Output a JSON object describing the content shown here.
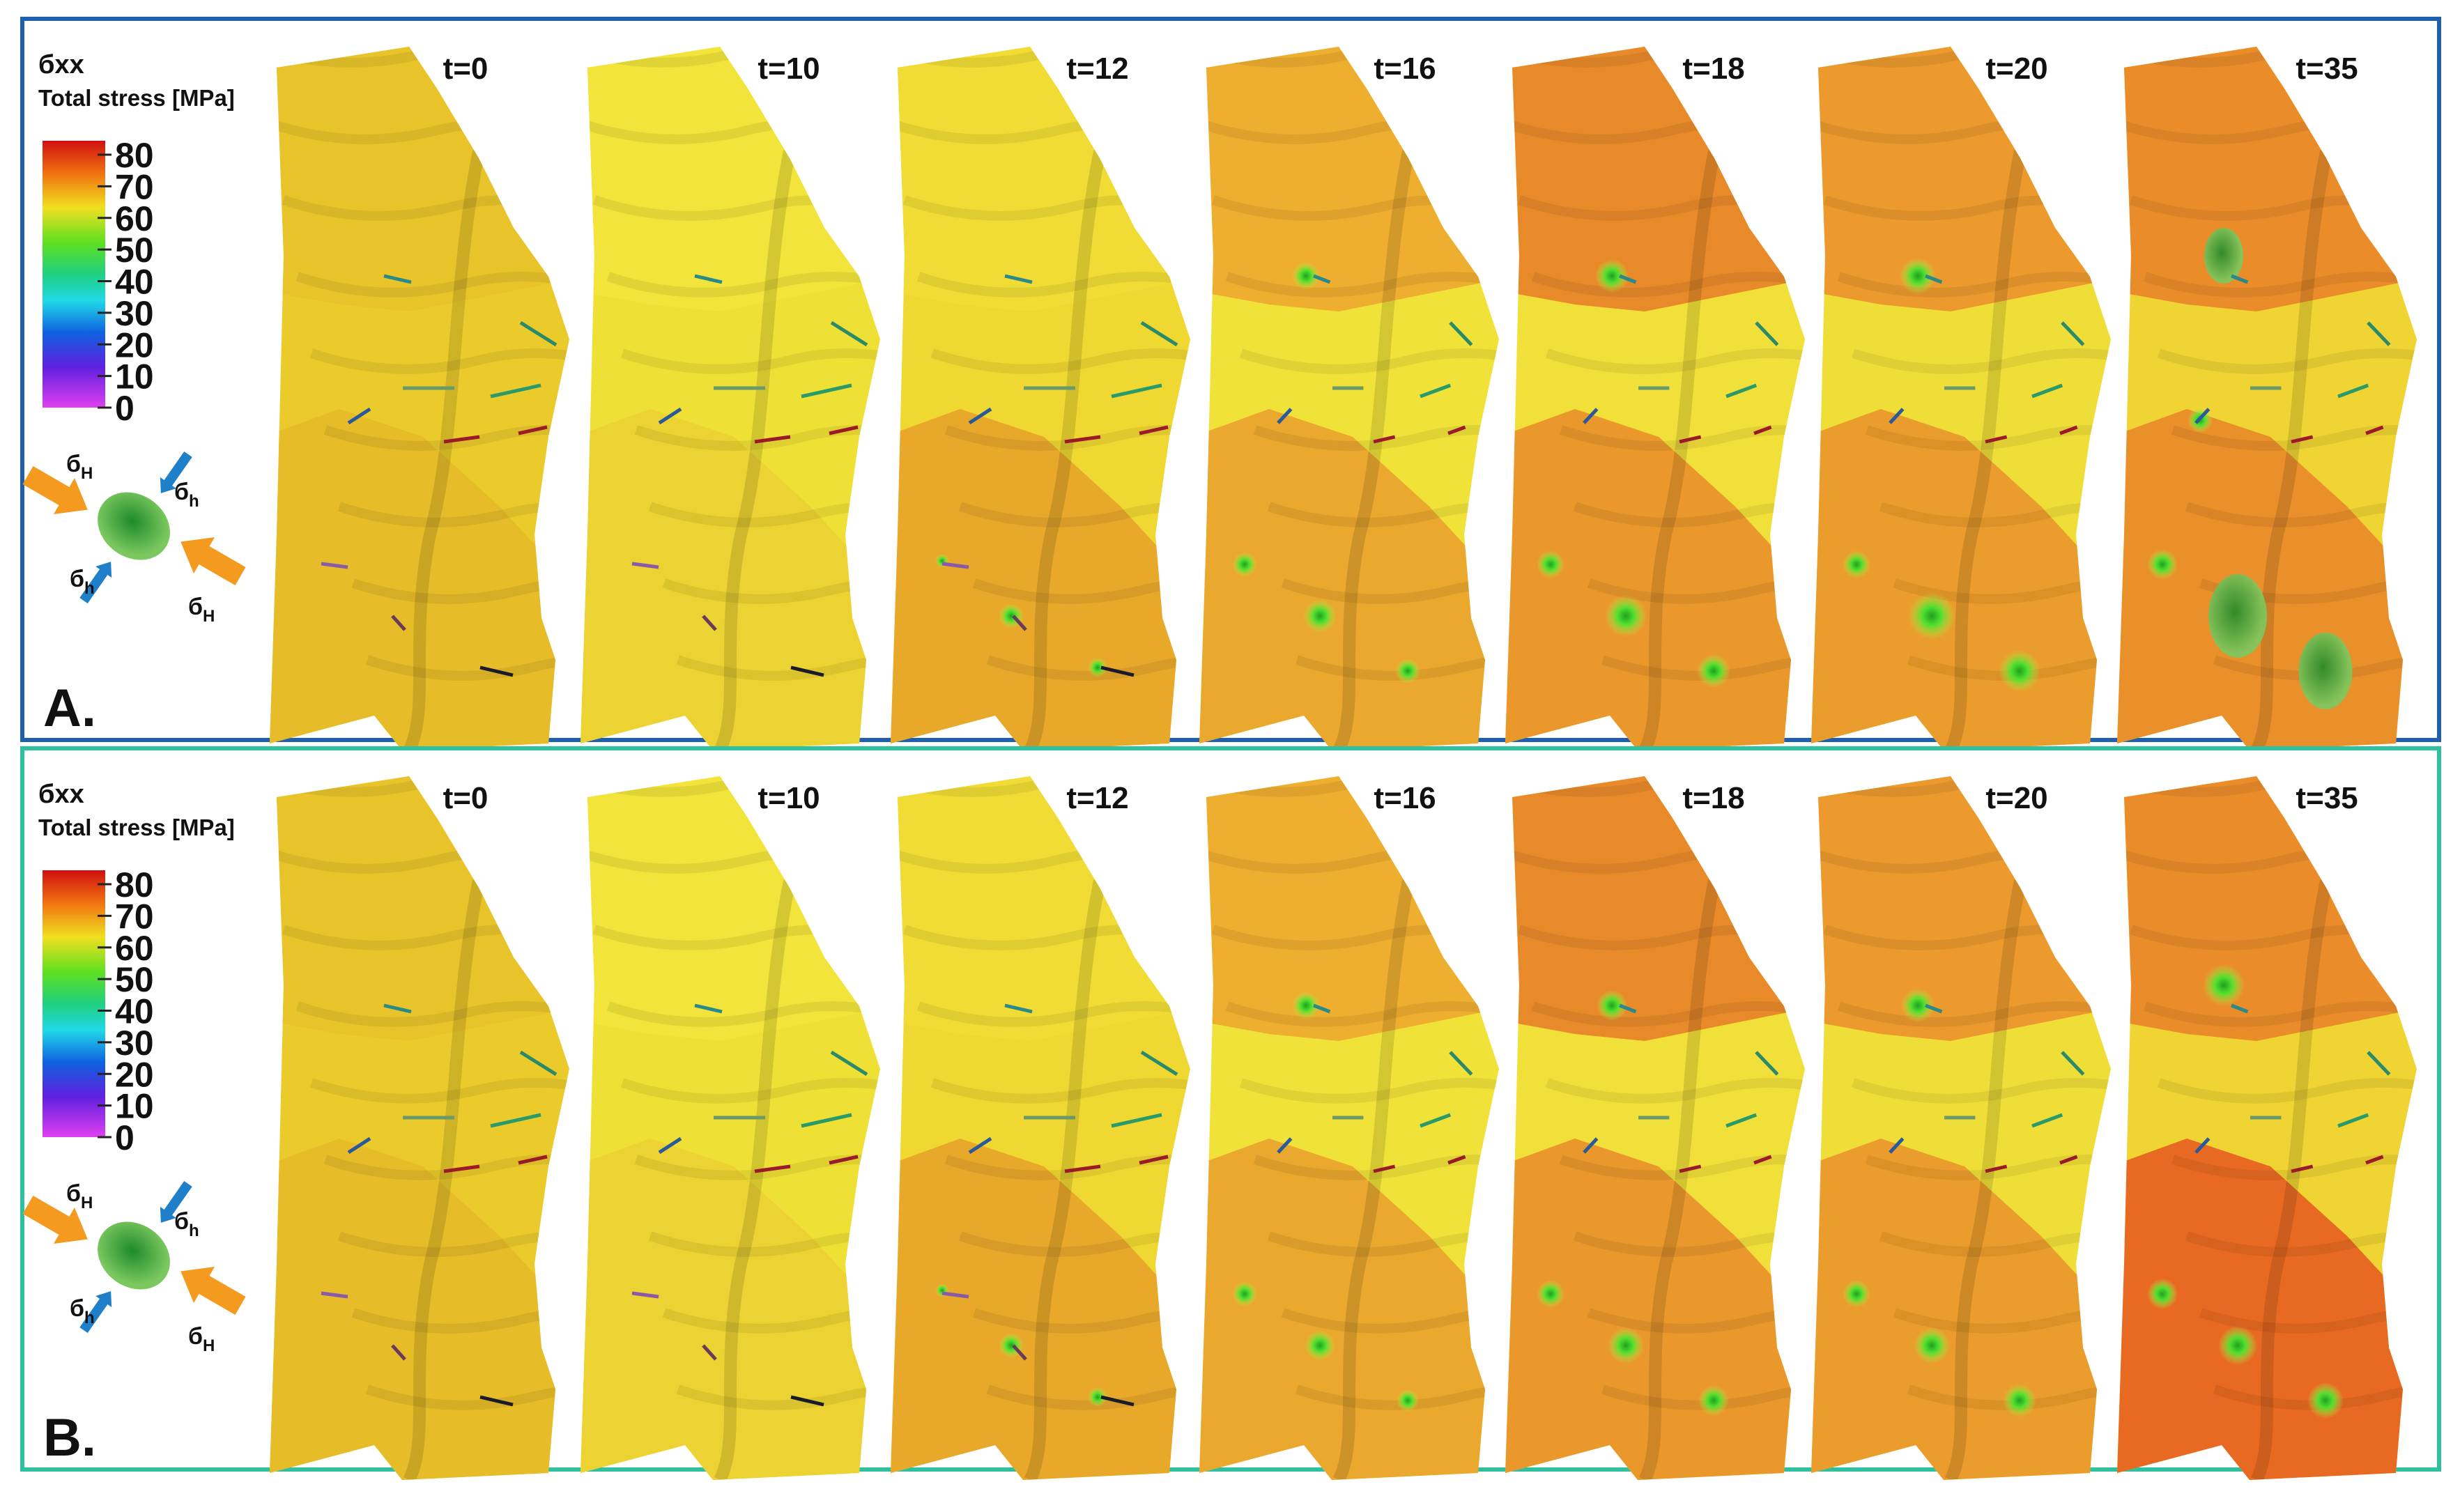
{
  "panels": [
    {
      "label": "A.",
      "legend": {
        "title": "бxx",
        "subtitle": "Total stress [MPa]",
        "ticks": [
          80,
          70,
          60,
          50,
          40,
          30,
          20,
          10,
          0
        ]
      },
      "stress_labels": [
        {
          "symbol": "б",
          "sub": "H"
        },
        {
          "symbol": "б",
          "sub": "h"
        },
        {
          "symbol": "б",
          "sub": "h"
        },
        {
          "symbol": "б",
          "sub": "H"
        }
      ],
      "time_labels": [
        "t=0",
        "t=10",
        "t=12",
        "t=16",
        "t=18",
        "t=20",
        "t=35"
      ]
    },
    {
      "label": "B.",
      "legend": {
        "title": "бxx",
        "subtitle": "Total stress [MPa]",
        "ticks": [
          80,
          70,
          60,
          50,
          40,
          30,
          20,
          10,
          0
        ]
      },
      "stress_labels": [
        {
          "symbol": "б",
          "sub": "H"
        },
        {
          "symbol": "б",
          "sub": "h"
        },
        {
          "symbol": "б",
          "sub": "h"
        },
        {
          "symbol": "б",
          "sub": "H"
        }
      ],
      "time_labels": [
        "t=0",
        "t=10",
        "t=12",
        "t=16",
        "t=18",
        "t=20",
        "t=35"
      ]
    }
  ]
}
